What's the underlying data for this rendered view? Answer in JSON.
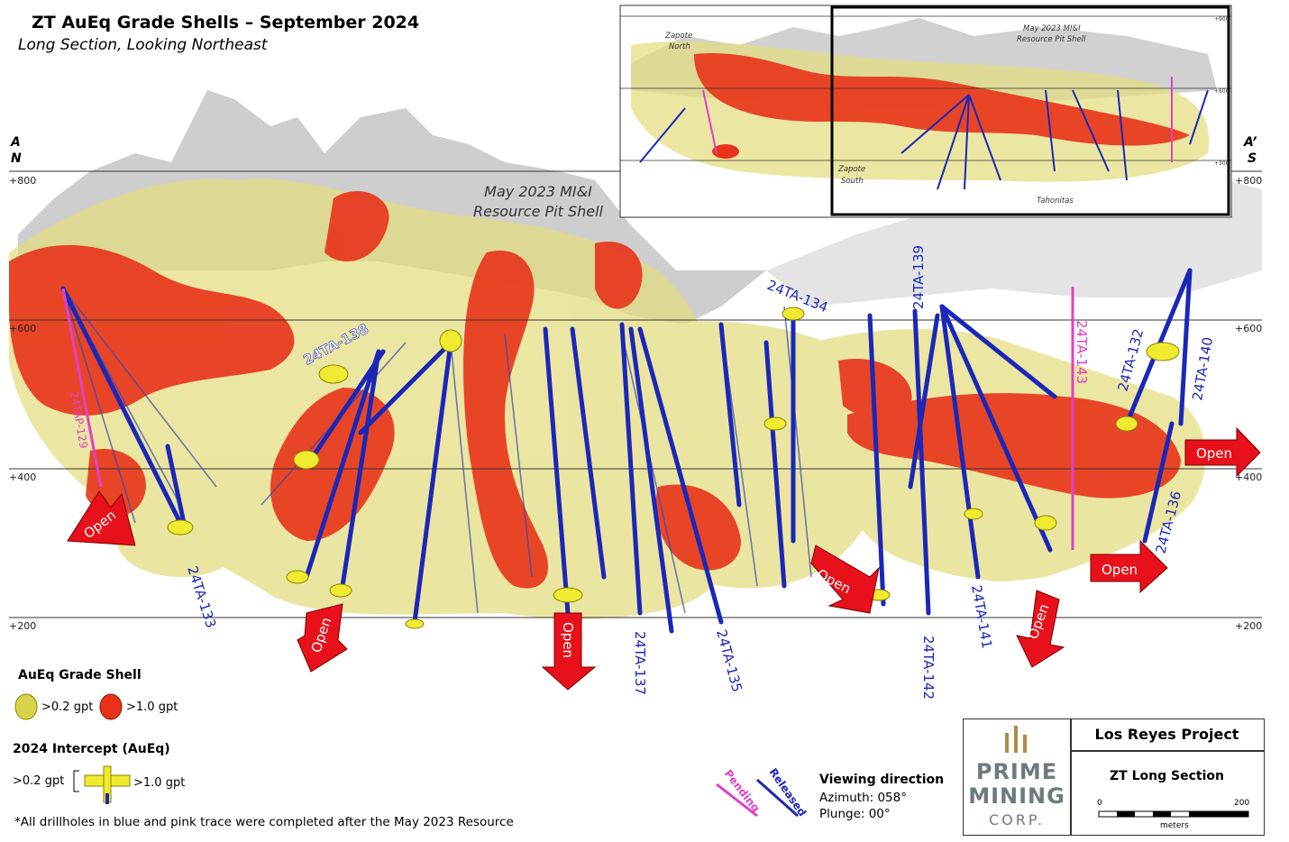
{
  "header": {
    "title": "ZT AuEq Grade Shells – September 2024",
    "subtitle": "Long Section, Looking Northeast"
  },
  "section_ends": {
    "left_letter": "A",
    "left_dir": "N",
    "right_letter": "A’",
    "right_dir": "S"
  },
  "elevations": {
    "e800": "+800",
    "e600": "+600",
    "e400": "+400",
    "e200": "+200"
  },
  "pit_shell_label": {
    "line1": "May 2023 MI&I",
    "line2": "Resource Pit Shell"
  },
  "drillholes": {
    "h133": "24TA-133",
    "h138": "24TA-138",
    "h129": "24TAP-129",
    "h134": "24TA-134",
    "h139": "24TA-139",
    "h143": "24TA-143",
    "h132": "24TA-132",
    "h140": "24TA-140",
    "h136": "24TA-136",
    "h137": "24TA-137",
    "h135": "24TA-135",
    "h142": "24TA-142",
    "h141": "24TA-141"
  },
  "open_label": "Open",
  "inset": {
    "zapote_north_1": "Zapote",
    "zapote_north_2": "North",
    "pit_1": "May 2023 MI&I",
    "pit_2": "Resource Pit Shell",
    "zapote_south_1": "Zapote",
    "zapote_south_2": "South",
    "tahonitas": "Tahonitas",
    "e900": "+900",
    "e600": "+600",
    "e300": "+300"
  },
  "legend": {
    "shell_title": "AuEq Grade Shell",
    "shell_low": ">0.2 gpt",
    "shell_high": ">1.0 gpt",
    "intercept_title": "2024 Intercept (AuEq)",
    "int_low": ">0.2 gpt",
    "int_high": ">1.0 gpt",
    "pending": "Pending",
    "released": "Released",
    "footnote": "*All drillholes in blue and pink trace were completed after the May 2023 Resource"
  },
  "viewing": {
    "title": "Viewing direction",
    "azimuth": "Azimuth: 058°",
    "plunge": "Plunge: 00°"
  },
  "title_block": {
    "project": "Los Reyes Project",
    "sheet": "ZT Long Section",
    "logo_1": "PRIME",
    "logo_2": "MINING",
    "logo_3": "CORP.",
    "scale_start": "0",
    "scale_end": "200",
    "scale_unit": "meters"
  },
  "colors": {
    "low_grade": "#e6e08a",
    "high_grade": "#e8331a",
    "drill_released": "#1a27b8",
    "drill_pending": "#e040c8",
    "arrow": "#e8101a",
    "pit": "#b8b8b8"
  }
}
